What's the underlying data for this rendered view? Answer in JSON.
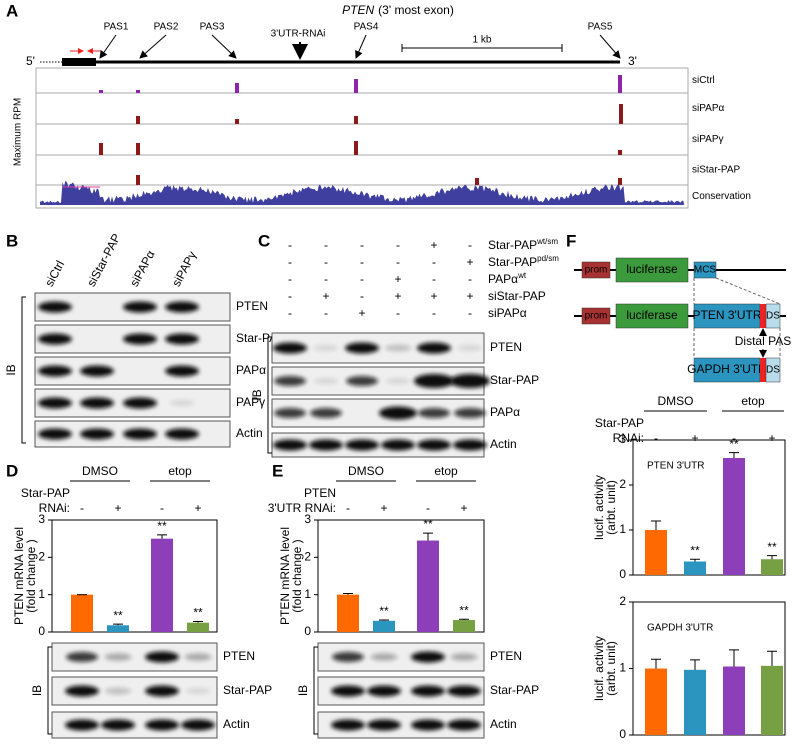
{
  "panels": {
    "A": {
      "label": "A",
      "title": {
        "gene": "PTEN",
        "rest": "(3' most exon)"
      },
      "five": "5'",
      "three": "3'",
      "sites": [
        "PAS1",
        "PAS2",
        "PAS3",
        "3'UTR-RNAi",
        "PAS4",
        "PAS5"
      ],
      "scale": "1 kb",
      "ylabel": "Maximum RPM",
      "tracks": [
        "siCtrl",
        "siPAPα",
        "siPAPγ",
        "siStar-PAP",
        "Conservation"
      ]
    },
    "B": {
      "label": "B",
      "lanes": [
        "siCtrl",
        "siStar-PAP",
        "siPAPα",
        "siPAPγ"
      ],
      "rows": [
        "PTEN",
        "Star-PAP",
        "PAPα",
        "PAPγ",
        "Actin"
      ],
      "ib": "IB"
    },
    "C": {
      "label": "C",
      "conditions": [
        {
          "name": "Star-PAP",
          "sup": "wt/sm",
          "signs": [
            "-",
            "-",
            "-",
            "-",
            "+",
            "-"
          ]
        },
        {
          "name": "Star-PAP",
          "sup": "pd/sm",
          "signs": [
            "-",
            "-",
            "-",
            "-",
            "-",
            "+"
          ]
        },
        {
          "name": "PAPα",
          "sup": "wt",
          "signs": [
            "-",
            "-",
            "-",
            "+",
            "-",
            "-"
          ]
        },
        {
          "name": "siStar-PAP",
          "signs": [
            "-",
            "+",
            "-",
            "+",
            "+",
            "+"
          ]
        },
        {
          "name": "siPAPα",
          "signs": [
            "-",
            "-",
            "+",
            "-",
            "-",
            "-"
          ]
        }
      ],
      "rows": [
        "PTEN",
        "Star-PAP",
        "PAPα",
        "Actin"
      ],
      "ib": "IB"
    },
    "D": {
      "label": "D",
      "rows": [
        "PTEN",
        "Star-PAP",
        "Actin"
      ],
      "ib": "IB"
    },
    "E": {
      "label": "E",
      "rows": [
        "PTEN",
        "Star-PAP",
        "Actin"
      ],
      "ib": "IB"
    },
    "F": {
      "label": "F",
      "constructs": {
        "prom": "prom",
        "luciferase": "luciferase",
        "mcs": "MCS",
        "pten": "PTEN 3'UTR",
        "ds": "DS",
        "pas": "Distal PAS",
        "gapdh": "GAPDH 3'UTR"
      }
    }
  },
  "chart_data": [
    {
      "type": "bar",
      "groups": [
        "DMSO",
        "etop"
      ],
      "factor": [
        "Star-PAP",
        "RNAi:"
      ],
      "categories": [
        "-",
        "+",
        "-",
        "+"
      ],
      "ylabel": [
        "PTEN mRNA level",
        "(fold change )"
      ],
      "colors": [
        "#ff6a00",
        "#2b95bf",
        "#8c3fb8",
        "#77a043"
      ],
      "values": [
        1.0,
        0.18,
        2.5,
        0.25
      ],
      "errors": [
        0,
        0.03,
        0.1,
        0.03
      ],
      "annotations": [
        null,
        "**",
        "**",
        "**"
      ],
      "ylim": [
        0,
        3
      ],
      "yticks": [
        0,
        1,
        2,
        3
      ]
    },
    {
      "type": "bar",
      "groups": [
        "DMSO",
        "etop"
      ],
      "factor": [
        "PTEN",
        "3'UTR RNAi:"
      ],
      "categories": [
        "-",
        "+",
        "-",
        "+"
      ],
      "ylabel": [
        "PTEN mRNA level",
        "(fold change )"
      ],
      "colors": [
        "#ff6a00",
        "#2b95bf",
        "#8c3fb8",
        "#77a043"
      ],
      "values": [
        1.0,
        0.3,
        2.45,
        0.32
      ],
      "errors": [
        0.03,
        0.02,
        0.2,
        0.02
      ],
      "annotations": [
        null,
        "**",
        "**",
        "**"
      ],
      "ylim": [
        0,
        3
      ],
      "yticks": [
        0,
        1,
        2,
        3
      ]
    },
    {
      "type": "bar",
      "groups": [
        "DMSO",
        "etop"
      ],
      "factor": [
        "Star-PAP",
        "RNAi:"
      ],
      "categories": [
        "-",
        "+",
        "-",
        "+"
      ],
      "title": "PTEN 3'UTR",
      "ylabel": [
        "lucif. activity",
        "(arbt. unit)"
      ],
      "colors": [
        "#ff6a00",
        "#2b95bf",
        "#8c3fb8",
        "#77a043"
      ],
      "values": [
        1.0,
        0.3,
        2.6,
        0.35
      ],
      "errors": [
        0.2,
        0.05,
        0.12,
        0.08
      ],
      "annotations": [
        null,
        "**",
        "**",
        "**"
      ],
      "ylim": [
        0,
        3
      ],
      "yticks": [
        0,
        1,
        2,
        3
      ]
    },
    {
      "type": "bar",
      "categories": [
        null,
        null,
        null,
        null
      ],
      "title": "GAPDH 3'UTR",
      "ylabel": [
        "lucif. activity",
        "(arbt. unit)"
      ],
      "colors": [
        "#ff6a00",
        "#2b95bf",
        "#8c3fb8",
        "#77a043"
      ],
      "values": [
        1.0,
        0.98,
        1.03,
        1.04
      ],
      "errors": [
        0.14,
        0.15,
        0.25,
        0.22
      ],
      "ylim": [
        0,
        2
      ],
      "yticks": [
        0,
        1,
        2
      ]
    }
  ]
}
